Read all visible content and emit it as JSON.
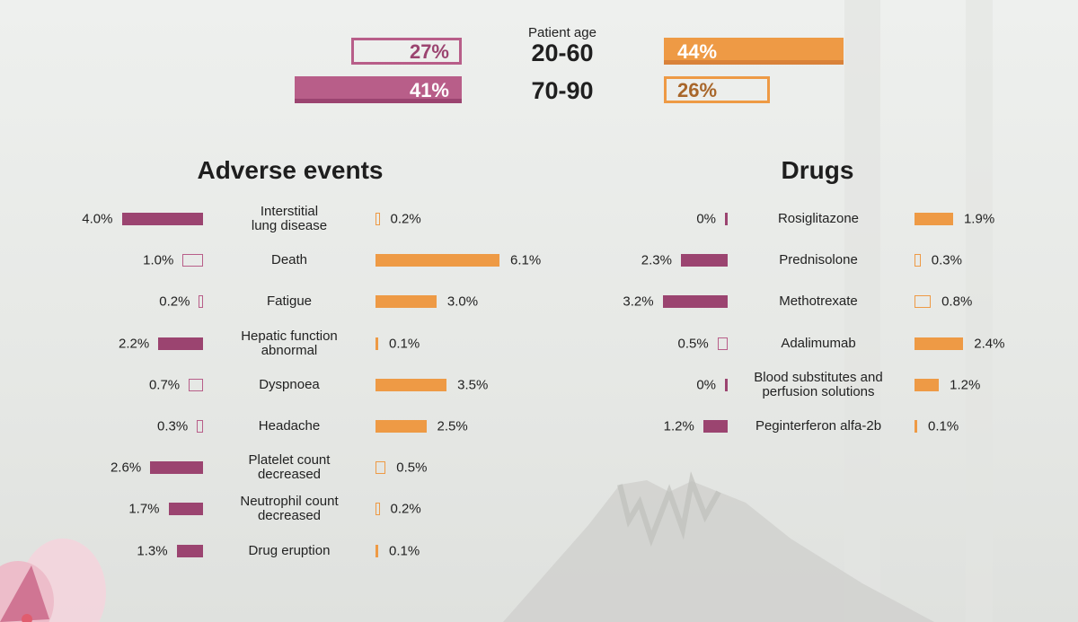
{
  "colors": {
    "magenta": "#9b4470",
    "magenta_light": "#b85e89",
    "orange": "#ee9a45",
    "orange_text": "#a8662a"
  },
  "age": {
    "label": "Patient age",
    "rows": [
      {
        "range": "20-60",
        "left_value": 27,
        "left_text": "27%",
        "right_value": 44,
        "right_text": "44%"
      },
      {
        "range": "70-90",
        "left_value": 41,
        "left_text": "41%",
        "right_value": 26,
        "right_text": "26%"
      }
    ]
  },
  "chart_data": [
    {
      "type": "bar",
      "title": "Adverse events",
      "categories": [
        "Interstitial\nlung disease",
        "Death",
        "Fatigue",
        "Hepatic function\nabnormal",
        "Dyspnoea",
        "Headache",
        "Platelet count\ndecreased",
        "Neutrophil count\ndecreased",
        "Drug eruption"
      ],
      "series": [
        {
          "values": [
            4.0,
            1.0,
            0.2,
            2.2,
            0.7,
            0.3,
            2.6,
            1.7,
            1.3
          ],
          "labels": [
            "4.0%",
            "1.0%",
            "0.2%",
            "2.2%",
            "0.7%",
            "0.3%",
            "2.6%",
            "1.7%",
            "1.3%"
          ],
          "highlighted": [
            true,
            false,
            false,
            true,
            false,
            false,
            true,
            true,
            true
          ]
        },
        {
          "values": [
            0.2,
            6.1,
            3.0,
            0.1,
            3.5,
            2.5,
            0.5,
            0.2,
            0.1
          ],
          "labels": [
            "0.2%",
            "6.1%",
            "3.0%",
            "0.1%",
            "3.5%",
            "2.5%",
            "0.5%",
            "0.2%",
            "0.1%"
          ],
          "highlighted": [
            false,
            true,
            true,
            true,
            true,
            true,
            false,
            false,
            true
          ]
        }
      ]
    },
    {
      "type": "bar",
      "title": "Drugs",
      "categories": [
        "Rosiglitazone",
        "Prednisolone",
        "Methotrexate",
        "Adalimumab",
        "Blood substitutes and\nperfusion solutions",
        "Peginterferon alfa-2b"
      ],
      "series": [
        {
          "values": [
            0,
            2.3,
            3.2,
            0.5,
            0,
            1.2
          ],
          "labels": [
            "0%",
            "2.3%",
            "3.2%",
            "0.5%",
            "0%",
            "1.2%"
          ],
          "highlighted": [
            true,
            true,
            true,
            false,
            true,
            true
          ]
        },
        {
          "values": [
            1.9,
            0.3,
            0.8,
            2.4,
            1.2,
            0.1
          ],
          "labels": [
            "1.9%",
            "0.3%",
            "0.8%",
            "2.4%",
            "1.2%",
            "0.1%"
          ],
          "highlighted": [
            true,
            false,
            false,
            true,
            true,
            true
          ]
        }
      ]
    }
  ]
}
